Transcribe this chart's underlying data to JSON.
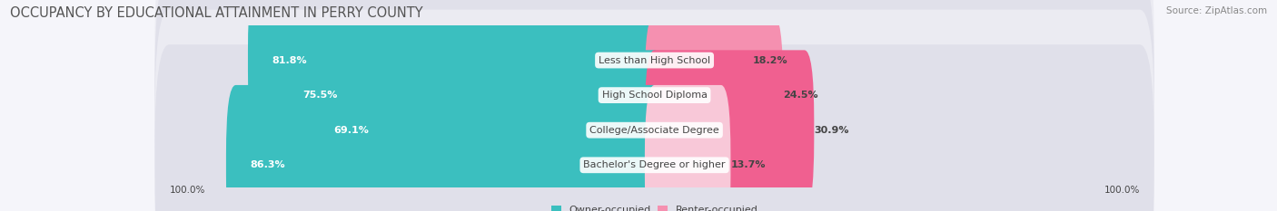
{
  "title": "OCCUPANCY BY EDUCATIONAL ATTAINMENT IN PERRY COUNTY",
  "source": "Source: ZipAtlas.com",
  "categories": [
    "Less than High School",
    "High School Diploma",
    "College/Associate Degree",
    "Bachelor's Degree or higher"
  ],
  "owner_pct": [
    81.8,
    75.5,
    69.1,
    86.3
  ],
  "renter_pct": [
    18.2,
    24.5,
    30.9,
    13.7
  ],
  "owner_color": "#3bbfbf",
  "renter_colors": [
    "#f8b8cc",
    "#f590b0",
    "#f06090",
    "#f8c8d8"
  ],
  "owner_label": "Owner-occupied",
  "renter_label": "Renter-occupied",
  "row_bg_color": "#ebebf2",
  "row_bg_color2": "#e0e0ea",
  "title_fontsize": 10.5,
  "source_fontsize": 7.5,
  "label_fontsize": 8,
  "bar_label_fontsize": 8,
  "axis_label_fontsize": 7.5,
  "title_color": "#555555",
  "source_color": "#888888",
  "value_text_color": "#ffffff",
  "category_text_color": "#444444",
  "axis_left": "100.0%",
  "axis_right": "100.0%"
}
